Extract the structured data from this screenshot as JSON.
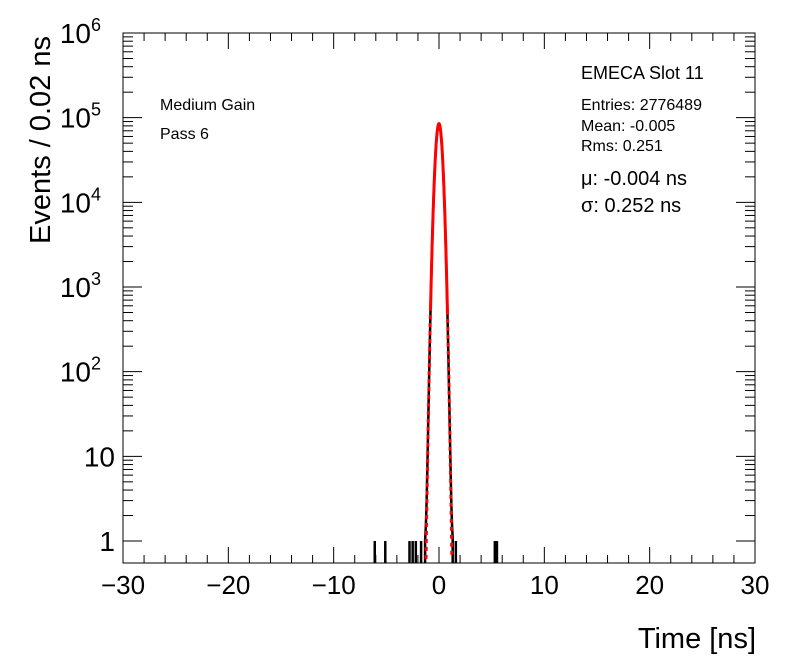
{
  "chart_data": {
    "type": "histogram",
    "xlabel": "Time [ns]",
    "ylabel": "Events / 0.02 ns",
    "xlim": [
      -30,
      30
    ],
    "ylim": [
      0.55,
      1000000
    ],
    "y_scale": "log",
    "x_ticks": [
      {
        "value": -30,
        "label": "−30"
      },
      {
        "value": -20,
        "label": "−20"
      },
      {
        "value": -10,
        "label": "−10"
      },
      {
        "value": 0,
        "label": "0"
      },
      {
        "value": 10,
        "label": "10"
      },
      {
        "value": 20,
        "label": "20"
      },
      {
        "value": 30,
        "label": "30"
      }
    ],
    "y_ticks": [
      {
        "value": 1,
        "base": "1",
        "exp": ""
      },
      {
        "value": 10,
        "base": "10",
        "exp": ""
      },
      {
        "value": 100,
        "base": "10",
        "exp": "2"
      },
      {
        "value": 1000,
        "base": "10",
        "exp": "3"
      },
      {
        "value": 10000,
        "base": "10",
        "exp": "4"
      },
      {
        "value": 100000,
        "base": "10",
        "exp": "5"
      },
      {
        "value": 1000000,
        "base": "10",
        "exp": "6"
      }
    ],
    "grid": false,
    "histogram": {
      "name": "EMECA Slot 11",
      "bin_width": 0.02,
      "entries": 2776489,
      "mean": -0.005,
      "rms": 0.251,
      "peak": 85000,
      "color": "#000000",
      "isolated_entries": [
        {
          "x": -6.1,
          "y": 1
        },
        {
          "x": -5.1,
          "y": 1
        },
        {
          "x": -2.8,
          "y": 1
        },
        {
          "x": -2.5,
          "y": 1
        },
        {
          "x": -2.2,
          "y": 1
        },
        {
          "x": -1.7,
          "y": 1
        },
        {
          "x": 1.6,
          "y": 1
        },
        {
          "x": 5.3,
          "y": 1
        },
        {
          "x": 5.5,
          "y": 1
        }
      ]
    },
    "fit": {
      "function": "gaussian",
      "mu": -0.004,
      "sigma": 0.252,
      "amplitude": 85000,
      "color": "#ff0000",
      "fit_range": [
        -0.8,
        0.8
      ]
    }
  },
  "labels": {
    "gain": "Medium Gain",
    "pass": "Pass 6"
  },
  "stats_box": {
    "title": "EMECA Slot 11",
    "entries": "Entries: 2776489",
    "mean": "Mean: -0.005",
    "rms": "Rms: 0.251"
  },
  "fit_box": {
    "mu": "μ: -0.004 ns",
    "sigma": "σ: 0.252 ns"
  }
}
